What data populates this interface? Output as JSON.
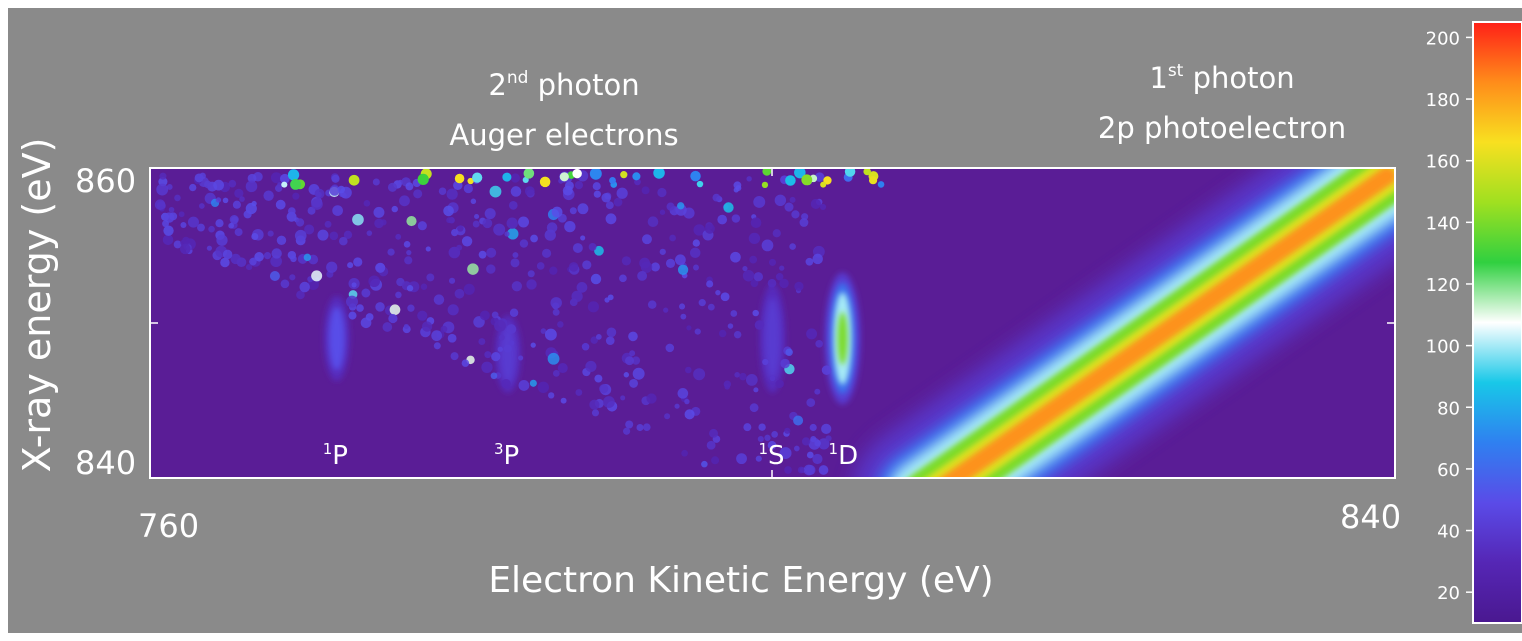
{
  "chart_data": {
    "type": "heatmap",
    "xlabel": "Electron Kinetic Energy (eV)",
    "ylabel": "X-ray energy  (eV)",
    "xlim": [
      760,
      840
    ],
    "ylim": [
      840,
      860
    ],
    "x_tick_labels": [
      "760",
      "840"
    ],
    "y_tick_labels": [
      "840",
      "860"
    ],
    "colorbar": {
      "range": [
        10,
        205
      ],
      "ticks": [
        20,
        40,
        60,
        80,
        100,
        120,
        140,
        160,
        180,
        200
      ],
      "colormap": "rainbow",
      "colors": [
        "#4a1890",
        "#5526b5",
        "#5a4be8",
        "#2f80f0",
        "#18c8e8",
        "#ffffff",
        "#30d040",
        "#a0e020",
        "#f8e020",
        "#ff8c1a",
        "#ff2018"
      ]
    },
    "background_color": "#5a1d96",
    "annotations": [
      {
        "sup": "nd",
        "base": "2",
        "text": " photon"
      },
      {
        "text": "Auger electrons"
      },
      {
        "sup": "st",
        "base": "1",
        "text": " photon"
      },
      {
        "text": "2p photoelectron"
      }
    ],
    "features": [
      {
        "label_sup": "1",
        "label": "P",
        "x": 772,
        "y_center": 849,
        "y_span": [
          846.5,
          852
        ],
        "peak_value": 50
      },
      {
        "label_sup": "3",
        "label": "P",
        "x": 783,
        "y_center": 848,
        "y_span": [
          846,
          851
        ],
        "peak_value": 40
      },
      {
        "label_sup": "1",
        "label": "S",
        "x": 800,
        "y_center": 849,
        "y_span": [
          846,
          853
        ],
        "peak_value": 40
      },
      {
        "label_sup": "1",
        "label": "D",
        "x": 804.5,
        "y_center": 849,
        "y_span": [
          845,
          853.5
        ],
        "peak_value": 140
      },
      {
        "label": "photoelectron band",
        "x": [
          808,
          840
        ],
        "y": [
          840,
          860
        ],
        "peak_value": 190
      }
    ]
  }
}
